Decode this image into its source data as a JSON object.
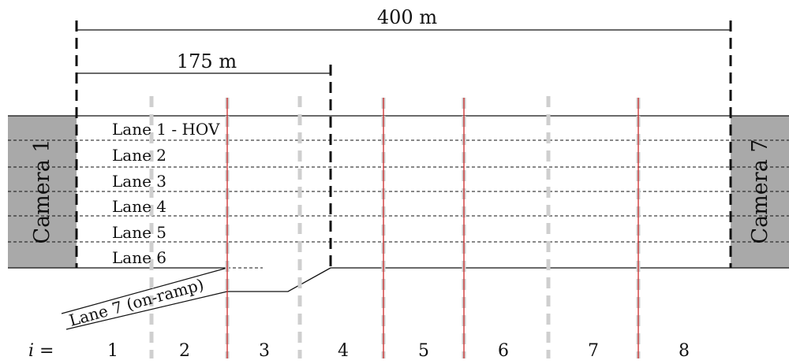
{
  "dimensions": {
    "total": "400 m",
    "partial": "175 m"
  },
  "cameras": {
    "left": "Camera 1",
    "right": "Camera 7"
  },
  "lanes": [
    "Lane 1 - HOV",
    "Lane 2",
    "Lane 3",
    "Lane 4",
    "Lane 5",
    "Lane 6"
  ],
  "on_ramp": "Lane 7 (on-ramp)",
  "section_index": {
    "prefix": "i =",
    "labels": [
      "1",
      "2",
      "3",
      "4",
      "5",
      "6",
      "7",
      "8"
    ]
  },
  "colors": {
    "camera_fill": "#a9a9a9",
    "boundary_red": "#cc2a2a",
    "boundary_gray": "#cfcfcf",
    "line": "#111111"
  }
}
